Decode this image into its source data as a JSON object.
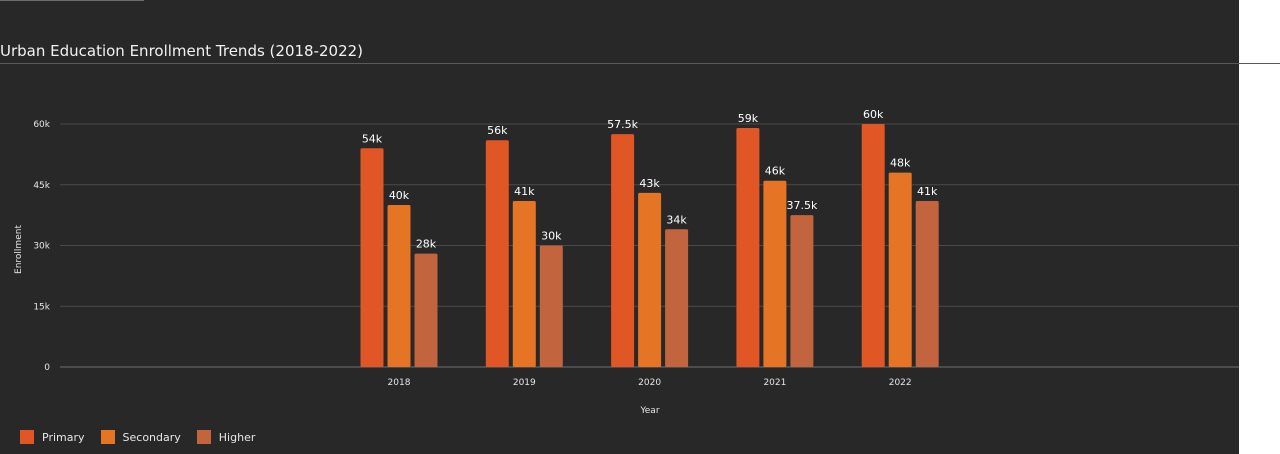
{
  "title": "Urban Education Enrollment Trends (2018-2022)",
  "colors": {
    "background": "#282828",
    "primary": "#e05624",
    "secondary": "#e57425",
    "higher": "#c2653e"
  },
  "chart_data": {
    "type": "bar",
    "title": "Urban Education Enrollment Trends (2018-2022)",
    "xlabel": "Year",
    "ylabel": "Enrollment",
    "categories": [
      "2018",
      "2019",
      "2020",
      "2021",
      "2022"
    ],
    "ylim": [
      0,
      60000
    ],
    "yticks": [
      0,
      15000,
      30000,
      45000,
      60000
    ],
    "ytick_labels": [
      "0",
      "15k",
      "30k",
      "45k",
      "60k"
    ],
    "grid": true,
    "legend_position": "bottom-left",
    "series": [
      {
        "name": "Primary",
        "color": "#e05624",
        "values": [
          54000,
          56000,
          57500,
          59000,
          60000
        ],
        "labels": [
          "54k",
          "56k",
          "57.5k",
          "59k",
          "60k"
        ]
      },
      {
        "name": "Secondary",
        "color": "#e57425",
        "values": [
          40000,
          41000,
          43000,
          46000,
          48000
        ],
        "labels": [
          "40k",
          "41k",
          "43k",
          "46k",
          "48k"
        ]
      },
      {
        "name": "Higher",
        "color": "#c2653e",
        "values": [
          28000,
          30000,
          34000,
          37500,
          41000
        ],
        "labels": [
          "28k",
          "30k",
          "34k",
          "37.5k",
          "41k"
        ]
      }
    ]
  }
}
